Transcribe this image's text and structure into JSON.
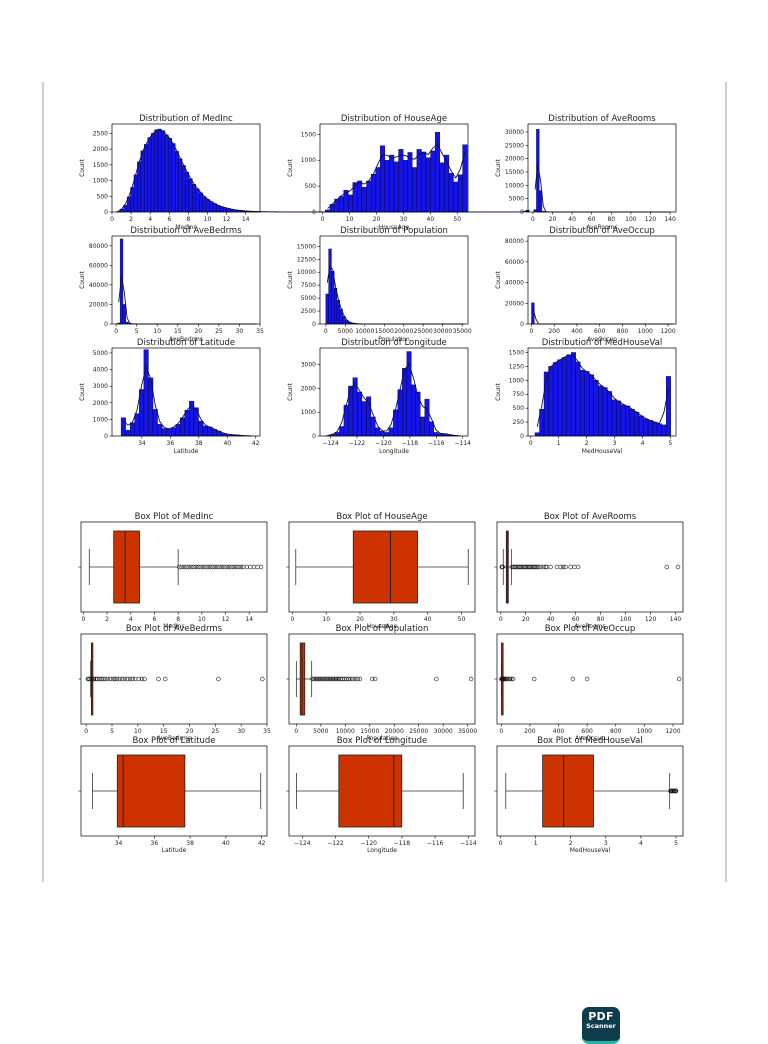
{
  "app_badge": {
    "line1": "PDF",
    "line2": "Scanner",
    "color": "#0f3d4c",
    "accent": "#1fb7a6"
  },
  "colors": {
    "hist_fill": "#1414e6",
    "hist_edge": "#00002a",
    "box_fill": "#cc3300"
  },
  "chart_data": [
    {
      "type": "bar",
      "title": "Distribution of MedInc",
      "xlabel": "MedInc",
      "ylabel": "Count",
      "xlim": [
        0,
        15.5
      ],
      "ylim": [
        0,
        2800
      ],
      "xticks": [
        0,
        2,
        4,
        6,
        8,
        10,
        12,
        14
      ],
      "yticks": [
        0,
        500,
        1000,
        1500,
        2000,
        2500
      ],
      "bin_start": 0.5,
      "bin_width": 0.36,
      "values": [
        20,
        90,
        220,
        480,
        780,
        1180,
        1600,
        1950,
        2150,
        2370,
        2500,
        2620,
        2640,
        2590,
        2450,
        2350,
        2180,
        1930,
        1700,
        1480,
        1270,
        1060,
        880,
        740,
        610,
        490,
        400,
        330,
        270,
        210,
        170,
        140,
        110,
        90,
        70,
        55,
        45,
        35,
        25,
        20,
        15,
        12,
        10,
        8,
        6,
        5,
        4,
        3,
        3,
        2,
        2,
        2,
        1,
        1,
        1,
        1,
        1,
        1,
        1,
        1,
        1,
        1,
        1,
        1,
        1,
        1,
        1,
        1,
        1,
        1,
        1,
        1,
        1,
        1,
        1,
        1,
        1,
        1,
        1,
        1,
        1,
        1,
        1,
        1,
        1,
        1,
        1,
        1,
        1,
        1,
        1,
        1,
        1,
        1,
        1,
        1,
        1,
        1,
        1,
        1,
        1,
        1,
        1,
        1,
        1,
        1,
        1,
        1,
        1,
        1,
        1,
        1,
        1,
        1,
        1,
        1,
        1,
        1,
        1,
        60
      ]
    },
    {
      "type": "bar",
      "title": "Distribution of HouseAge",
      "xlabel": "HouseAge",
      "ylabel": "Count",
      "xlim": [
        -1,
        54
      ],
      "ylim": [
        0,
        1700
      ],
      "xticks": [
        0,
        10,
        20,
        30,
        40,
        50
      ],
      "yticks": [
        0,
        500,
        1000,
        1500
      ],
      "bin_start": 1,
      "bin_width": 1.7,
      "values": [
        40,
        150,
        250,
        300,
        420,
        330,
        570,
        600,
        480,
        600,
        730,
        860,
        1280,
        1000,
        1100,
        970,
        1210,
        1000,
        1150,
        860,
        1210,
        1160,
        1050,
        1180,
        1540,
        950,
        1100,
        750,
        580,
        720,
        1300
      ]
    },
    {
      "type": "bar",
      "title": "Distribution of AveRooms",
      "xlabel": "AveRooms",
      "ylabel": "Count",
      "xlim": [
        -5,
        146
      ],
      "ylim": [
        0,
        33000
      ],
      "xticks": [
        0,
        20,
        40,
        60,
        80,
        100,
        120,
        140
      ],
      "yticks": [
        0,
        5000,
        10000,
        15000,
        20000,
        25000,
        30000
      ],
      "bin_start": 0.8,
      "bin_width": 2.8,
      "values": [
        900,
        31000,
        8000,
        300,
        80,
        30,
        10,
        5,
        3,
        2,
        2,
        1,
        1,
        1,
        1,
        1,
        1,
        1,
        1,
        1,
        1,
        1,
        1,
        1,
        1,
        1,
        1,
        1,
        1,
        1,
        1,
        1,
        1,
        1,
        1,
        1,
        1,
        1,
        1,
        1,
        1,
        1,
        1,
        1,
        1,
        1,
        1,
        1,
        1,
        1
      ]
    },
    {
      "type": "bar",
      "title": "Distribution of AveBedrms",
      "xlabel": "AveBedrms",
      "ylabel": "Count",
      "xlim": [
        -1,
        35
      ],
      "ylim": [
        0,
        90000
      ],
      "xticks": [
        0,
        5,
        10,
        15,
        20,
        25,
        30,
        35
      ],
      "yticks": [
        0,
        20000,
        40000,
        60000,
        80000
      ],
      "bin_start": 0.3,
      "bin_width": 0.68,
      "values": [
        1000,
        87000,
        20000,
        2000,
        300,
        100,
        40,
        20,
        10,
        5,
        3,
        2,
        1,
        1,
        1,
        1,
        1,
        1,
        1,
        1,
        1,
        1,
        1,
        1,
        1,
        1,
        1,
        1,
        1,
        1,
        1,
        1,
        1,
        1,
        1,
        1,
        1,
        1,
        1,
        1,
        1,
        1,
        1,
        1,
        1,
        1,
        1,
        1,
        1,
        1
      ]
    },
    {
      "type": "bar",
      "title": "Distribution of Population",
      "xlabel": "Population",
      "ylabel": "Count",
      "xlim": [
        -1500,
        36500
      ],
      "ylim": [
        0,
        17000
      ],
      "xticks": [
        0,
        5000,
        10000,
        15000,
        20000,
        25000,
        30000,
        35000
      ],
      "yticks": [
        0,
        2500,
        5000,
        7500,
        10000,
        12500,
        15000
      ],
      "bin_start": 3,
      "bin_width": 714,
      "values": [
        5800,
        14500,
        10200,
        6900,
        4600,
        2900,
        1500,
        700,
        350,
        170,
        90,
        50,
        30,
        20,
        10,
        8,
        5,
        4,
        3,
        2,
        2,
        1,
        1,
        1,
        1,
        1,
        1,
        1,
        1,
        1,
        1,
        1,
        1,
        1,
        1,
        1,
        1,
        1,
        1,
        1,
        1,
        1,
        1,
        1,
        1,
        1,
        1,
        1,
        1,
        1
      ]
    },
    {
      "type": "bar",
      "title": "Distribution of AveOccup",
      "xlabel": "AveOccup",
      "ylabel": "Count",
      "xlim": [
        -30,
        1270
      ],
      "ylim": [
        0,
        85000
      ],
      "xticks": [
        0,
        200,
        400,
        600,
        800,
        1000,
        1200
      ],
      "yticks": [
        0,
        20000,
        40000,
        60000,
        80000
      ],
      "bin_start": 0.7,
      "bin_width": 25,
      "values": [
        20500,
        30,
        5,
        3,
        2,
        1,
        1,
        1,
        1,
        1,
        1,
        1,
        1,
        1,
        1,
        1,
        1,
        1,
        1,
        1,
        1,
        1,
        1,
        1,
        1,
        1,
        1,
        1,
        1,
        1,
        1,
        1,
        1,
        1,
        1,
        1,
        1,
        1,
        1,
        1,
        1,
        1,
        1,
        1,
        1,
        1,
        1,
        1,
        1,
        1
      ]
    },
    {
      "type": "bar",
      "title": "Distribution of Latitude",
      "xlabel": "Latitude",
      "ylabel": "Count",
      "xlim": [
        31.9,
        42.3
      ],
      "ylim": [
        0,
        5300
      ],
      "xticks": [
        34,
        36,
        38,
        40,
        42
      ],
      "yticks": [
        0,
        1000,
        2000,
        3000,
        4000,
        5000
      ],
      "bin_start": 32.54,
      "bin_width": 0.32,
      "values": [
        1100,
        350,
        800,
        1350,
        2800,
        5200,
        3500,
        1600,
        700,
        450,
        400,
        500,
        700,
        1100,
        1550,
        2100,
        1700,
        900,
        600,
        550,
        400,
        300,
        150,
        100,
        80,
        60,
        30,
        20,
        10
      ]
    },
    {
      "type": "bar",
      "title": "Distribution of Longitude",
      "xlabel": "Longitude",
      "ylabel": "Count",
      "xlim": [
        -124.8,
        -113.6
      ],
      "ylim": [
        0,
        3700
      ],
      "xticks": [
        -124,
        -122,
        -120,
        -118,
        -116,
        -114
      ],
      "yticks": [
        0,
        1000,
        2000,
        3000
      ],
      "bin_start": -124.35,
      "bin_width": 0.34,
      "values": [
        20,
        60,
        150,
        400,
        1300,
        2100,
        2450,
        1850,
        1450,
        1650,
        800,
        350,
        200,
        150,
        350,
        1100,
        1950,
        2850,
        3550,
        2150,
        1850,
        800,
        1550,
        600,
        150,
        100,
        100,
        60,
        20,
        10
      ]
    },
    {
      "type": "bar",
      "title": "Distribution of MedHouseVal",
      "xlabel": "MedHouseVal",
      "ylabel": "Count",
      "xlim": [
        -0.1,
        5.2
      ],
      "ylim": [
        0,
        1580
      ],
      "xticks": [
        0,
        1,
        2,
        3,
        4,
        5
      ],
      "yticks": [
        0,
        250,
        500,
        750,
        1000,
        1250,
        1500
      ],
      "bin_start": 0.15,
      "bin_width": 0.162,
      "values": [
        60,
        480,
        1150,
        1250,
        1320,
        1370,
        1410,
        1460,
        1500,
        1330,
        1180,
        1160,
        1100,
        1000,
        900,
        870,
        800,
        650,
        630,
        560,
        540,
        480,
        430,
        360,
        310,
        280,
        250,
        220,
        200,
        1070
      ]
    },
    {
      "type": "box",
      "title": "Box Plot of MedInc",
      "xlabel": "MedInc",
      "xlim": [
        -0.2,
        15.5
      ],
      "xticks": [
        0,
        2,
        4,
        6,
        8,
        10,
        12,
        14
      ],
      "whisker_low": 0.5,
      "q1": 2.56,
      "median": 3.53,
      "q3": 4.74,
      "whisker_high": 8.0,
      "outliers": [
        8.1,
        8.3,
        8.5,
        8.7,
        8.9,
        9.1,
        9.3,
        9.5,
        9.7,
        9.9,
        10.1,
        10.3,
        10.5,
        10.7,
        10.9,
        11.1,
        11.3,
        11.5,
        11.7,
        11.9,
        12.1,
        12.3,
        12.5,
        12.7,
        12.9,
        13.1,
        13.3,
        13.5,
        13.8,
        14.1,
        14.4,
        14.7,
        15.0
      ]
    },
    {
      "type": "box",
      "title": "Box Plot of HouseAge",
      "xlabel": "HouseAge",
      "xlim": [
        -1,
        54
      ],
      "xticks": [
        0,
        10,
        20,
        30,
        40,
        50
      ],
      "whisker_low": 1,
      "q1": 18,
      "median": 29,
      "q3": 37,
      "whisker_high": 52,
      "outliers": []
    },
    {
      "type": "box",
      "title": "Box Plot of AveRooms",
      "xlabel": "AveRooms",
      "xlim": [
        -3,
        146
      ],
      "xticks": [
        0,
        20,
        40,
        60,
        80,
        100,
        120,
        140
      ],
      "whisker_low": 2.0,
      "q1": 4.44,
      "median": 5.23,
      "q3": 6.05,
      "whisker_high": 8.5,
      "outliers": [
        0.85,
        1.2,
        1.6,
        9.0,
        10,
        11,
        12,
        13,
        14,
        15,
        16,
        17,
        18,
        19,
        20,
        21,
        22,
        23,
        24,
        25,
        26,
        27,
        28,
        29,
        30,
        32,
        34,
        36,
        37,
        40,
        45,
        48,
        50,
        52,
        56,
        59,
        62,
        133,
        142
      ]
    },
    {
      "type": "box",
      "title": "Box Plot of AveBedrms",
      "xlabel": "AveBedrms",
      "xlim": [
        -1,
        35
      ],
      "xticks": [
        0,
        5,
        10,
        15,
        20,
        25,
        30,
        35
      ],
      "whisker_low": 0.87,
      "q1": 1.01,
      "median": 1.05,
      "q3": 1.1,
      "whisker_high": 1.24,
      "outliers": [
        0.33,
        0.5,
        0.7,
        1.3,
        1.5,
        1.8,
        2.1,
        2.5,
        2.9,
        3.3,
        3.7,
        4.2,
        4.7,
        5.2,
        5.6,
        6.0,
        6.5,
        7.0,
        7.5,
        8.0,
        8.5,
        9.0,
        9.5,
        10.2,
        10.8,
        11.3,
        14.0,
        15.3,
        25.6,
        34.1
      ]
    },
    {
      "type": "box",
      "title": "Box Plot of Population",
      "xlabel": "Population",
      "xlim": [
        -1500,
        36500
      ],
      "xticks": [
        0,
        5000,
        10000,
        15000,
        20000,
        25000,
        30000,
        35000
      ],
      "whisker_low": 3,
      "q1": 787,
      "median": 1166,
      "q3": 1725,
      "whisker_high": 3132,
      "outliers": [
        3300,
        3600,
        3900,
        4200,
        4500,
        4800,
        5100,
        5400,
        5700,
        6000,
        6300,
        6600,
        6900,
        7200,
        7500,
        7800,
        8100,
        8400,
        8700,
        9000,
        9400,
        9800,
        10200,
        10600,
        11000,
        11500,
        12000,
        12500,
        13000,
        15500,
        16100,
        28600,
        35700
      ]
    },
    {
      "type": "box",
      "title": "Box Plot of AveOccup",
      "xlabel": "AveOccup",
      "xlim": [
        -30,
        1270
      ],
      "xticks": [
        0,
        200,
        400,
        600,
        800,
        1000,
        1200
      ],
      "whisker_low": 1.16,
      "q1": 2.43,
      "median": 2.82,
      "q3": 3.28,
      "whisker_high": 4.56,
      "outliers": [
        0.7,
        5,
        8,
        12,
        16,
        20,
        25,
        30,
        40,
        50,
        60,
        70,
        83,
        230,
        500,
        600,
        1243
      ]
    },
    {
      "type": "box",
      "title": "Box Plot of Latitude",
      "xlabel": "Latitude",
      "xlim": [
        31.9,
        42.3
      ],
      "xticks": [
        34,
        36,
        38,
        40,
        42
      ],
      "whisker_low": 32.54,
      "q1": 33.93,
      "median": 34.26,
      "q3": 37.71,
      "whisker_high": 41.95,
      "outliers": []
    },
    {
      "type": "box",
      "title": "Box Plot of Longitude",
      "xlabel": "Longitude",
      "xlim": [
        -124.8,
        -113.6
      ],
      "xticks": [
        -124,
        -122,
        -120,
        -118,
        -116,
        -114
      ],
      "whisker_low": -124.35,
      "q1": -121.8,
      "median": -118.49,
      "q3": -118.01,
      "whisker_high": -114.31,
      "outliers": []
    },
    {
      "type": "box",
      "title": "Box Plot of MedHouseVal",
      "xlabel": "MedHouseVal",
      "xlim": [
        -0.1,
        5.2
      ],
      "xticks": [
        0,
        1,
        2,
        3,
        4,
        5
      ],
      "whisker_low": 0.15,
      "q1": 1.2,
      "median": 1.8,
      "q3": 2.65,
      "whisker_high": 4.82,
      "outliers": [
        4.84,
        4.86,
        4.88,
        4.9,
        4.92,
        4.94,
        4.96,
        4.98,
        5.0,
        5.0
      ]
    }
  ]
}
